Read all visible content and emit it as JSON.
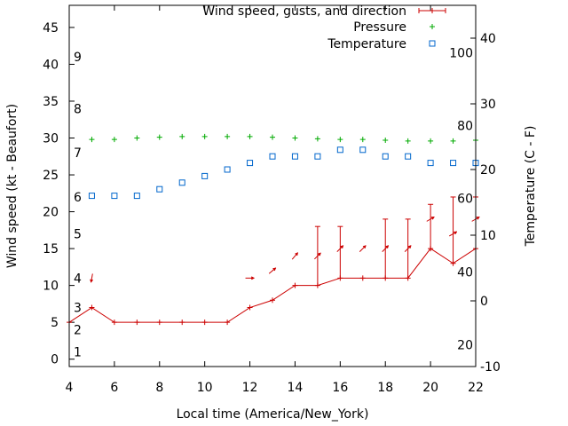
{
  "chart_data": {
    "type": "line",
    "xlabel": "Local time (America/New_York)",
    "ylabel": "Wind speed (kt - Beaufort)",
    "y2label": "Temperature (C - F)",
    "xlim": [
      4,
      22
    ],
    "ylim": [
      -1,
      48
    ],
    "y2lim": [
      -10,
      45
    ],
    "x_ticks": [
      4,
      6,
      8,
      10,
      12,
      14,
      16,
      18,
      20,
      22
    ],
    "y_ticks": [
      0,
      5,
      10,
      15,
      20,
      25,
      30,
      35,
      40,
      45
    ],
    "y2_ticks": [
      -10,
      0,
      10,
      20,
      30,
      40
    ],
    "beaufort_labels": [
      {
        "label": "1",
        "kt": 1
      },
      {
        "label": "2",
        "kt": 4
      },
      {
        "label": "3",
        "kt": 7
      },
      {
        "label": "4",
        "kt": 11
      },
      {
        "label": "5",
        "kt": 17
      },
      {
        "label": "6",
        "kt": 22
      },
      {
        "label": "7",
        "kt": 28
      },
      {
        "label": "8",
        "kt": 34
      },
      {
        "label": "9",
        "kt": 41
      }
    ],
    "fahrenheit_labels": [
      {
        "label": "20",
        "celsius": -6.7
      },
      {
        "label": "40",
        "celsius": 4.4
      },
      {
        "label": "60",
        "celsius": 15.6
      },
      {
        "label": "80",
        "celsius": 26.7
      },
      {
        "label": "100",
        "celsius": 37.8
      }
    ],
    "legend_position": "top-right",
    "series": [
      {
        "name": "Wind speed, gusts, and direction",
        "color": "#cc0000",
        "x": [
          4,
          5,
          6,
          7,
          8,
          9,
          10,
          11,
          12,
          13,
          14,
          15,
          16,
          17,
          18,
          19,
          20,
          21,
          22
        ],
        "values": [
          5,
          7,
          5,
          5,
          5,
          5,
          5,
          5,
          7,
          8,
          10,
          10,
          11,
          11,
          11,
          11,
          15,
          13,
          15
        ],
        "gusts": [
          null,
          null,
          null,
          null,
          null,
          null,
          null,
          null,
          null,
          null,
          null,
          18,
          18,
          null,
          19,
          19,
          21,
          22,
          22
        ],
        "direction_from_deg": [
          null,
          10,
          null,
          null,
          null,
          null,
          null,
          null,
          270,
          230,
          220,
          225,
          225,
          225,
          225,
          225,
          240,
          240,
          240
        ]
      },
      {
        "name": "Pressure",
        "color": "#00aa00",
        "x": [
          5,
          6,
          7,
          8,
          9,
          10,
          11,
          12,
          13,
          14,
          15,
          16,
          17,
          18,
          19,
          20,
          21,
          22
        ],
        "values": [
          29.8,
          29.8,
          30.0,
          30.1,
          30.2,
          30.2,
          30.2,
          30.2,
          30.1,
          30.0,
          29.9,
          29.8,
          29.8,
          29.7,
          29.6,
          29.6,
          29.6,
          29.7
        ]
      },
      {
        "name": "Temperature",
        "color": "#0066cc",
        "x": [
          5,
          6,
          7,
          8,
          9,
          10,
          11,
          12,
          13,
          14,
          15,
          16,
          17,
          18,
          19,
          20,
          21,
          22
        ],
        "values": [
          16,
          16,
          16,
          17,
          18,
          19,
          20,
          21,
          22,
          22,
          22,
          23,
          23,
          22,
          22,
          21,
          21,
          21
        ]
      }
    ]
  }
}
